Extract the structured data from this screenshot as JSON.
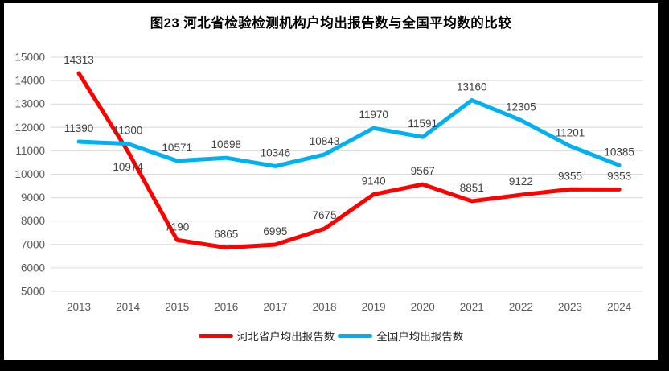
{
  "chart_data": {
    "type": "line",
    "title": "图23  河北省检验检测机构户均出报告数与全国平均数的比较",
    "categories": [
      "2013",
      "2014",
      "2015",
      "2016",
      "2017",
      "2018",
      "2019",
      "2020",
      "2021",
      "2022",
      "2023",
      "2024"
    ],
    "series": [
      {
        "key": "hebei",
        "name": "河北省户均出报告数",
        "color": "#ff0000",
        "values": [
          14313,
          10974,
          7190,
          6865,
          6995,
          7675,
          9140,
          9567,
          8851,
          9122,
          9355,
          9353
        ],
        "labels_below_indices": [
          1
        ]
      },
      {
        "key": "national",
        "name": "全国户均出报告数",
        "color": "#00b0f0",
        "values": [
          11390,
          11300,
          10571,
          10698,
          10346,
          10843,
          11970,
          11591,
          13160,
          12305,
          11201,
          10385
        ],
        "labels_below_indices": []
      }
    ],
    "ylim": [
      5000,
      15000
    ],
    "yticks": [
      5000,
      6000,
      7000,
      8000,
      9000,
      10000,
      11000,
      12000,
      13000,
      14000,
      15000
    ],
    "xlabel": "",
    "ylabel": "",
    "grid": true,
    "legend_position": "bottom",
    "colors": {
      "gridline": "#d9d9d9",
      "axis_label": "#595959",
      "data_label": "#404040",
      "title": "#000000",
      "background": "#ffffff",
      "frame": "#000000"
    }
  }
}
